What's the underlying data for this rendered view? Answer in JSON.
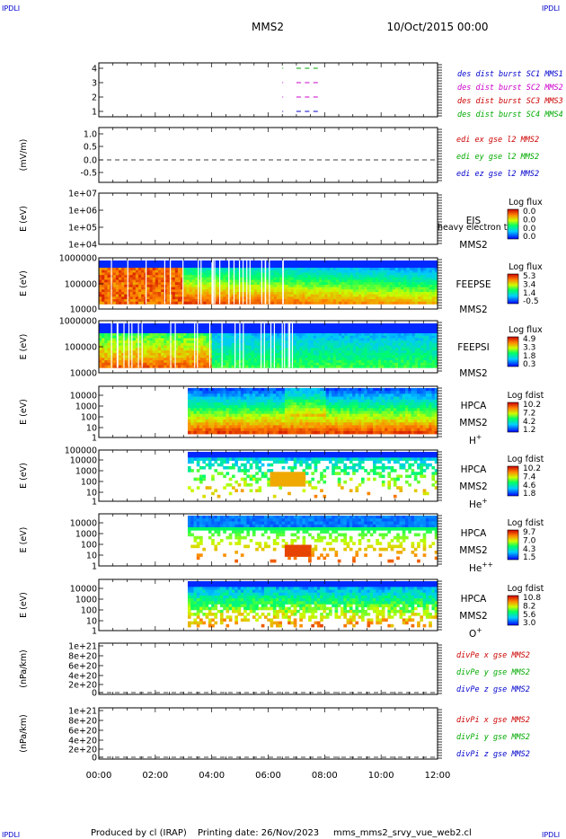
{
  "header": {
    "corner_tl": "IPDLI",
    "corner_tr": "IPDLI",
    "title": "MMS2",
    "date": "10/Oct/2015 00:00"
  },
  "footer": {
    "corner_bl": "IPDLI",
    "corner_br": "IPDLI",
    "produced_by": "Produced by cl (IRAP)",
    "printing_date": "Printing date: 26/Nov/2023",
    "script_name": "mms_mms2_srvy_vue_web2.cl"
  },
  "x_axis": {
    "tick_labels": [
      "00:00",
      "02:00",
      "04:00",
      "06:00",
      "08:00",
      "10:00",
      "12:00"
    ]
  },
  "colors": {
    "mms1": "#0000cc",
    "mms2": "#cc00cc",
    "mms3": "#cc0000",
    "mms4": "#00aa00",
    "red": "#cc0000",
    "green": "#00aa00",
    "blue": "#0000cc"
  },
  "chart_data": [
    {
      "type": "line",
      "panel": "burst",
      "yticks": [
        "1",
        "2",
        "3",
        "4"
      ],
      "legend": [
        "des dist burst SC1 MMS1",
        "des dist burst SC2 MMS2",
        "des dist burst SC3 MMS3",
        "des dist burst SC4 MMS4"
      ],
      "series": [
        {
          "name": "des dist burst SC4 MMS4",
          "level": 4,
          "x": [
            6.5,
            7.0,
            7.3,
            7.6
          ],
          "y": [
            4,
            4,
            4,
            4
          ]
        },
        {
          "name": "des dist burst SC3 MMS3",
          "level": 3,
          "x": [
            6.5,
            7.0,
            7.3,
            7.6
          ],
          "y": [
            3,
            3,
            3,
            3
          ]
        },
        {
          "name": "des dist burst SC2 MMS2",
          "level": 2,
          "x": [
            6.5,
            7.0,
            7.3,
            7.6
          ],
          "y": [
            2,
            2,
            2,
            2
          ]
        },
        {
          "name": "des dist burst SC1 MMS1",
          "level": 1,
          "x": [
            6.5,
            7.0,
            7.3,
            7.6
          ],
          "y": [
            1,
            1,
            1,
            1
          ]
        }
      ],
      "xlim": [
        0,
        12
      ]
    },
    {
      "type": "line",
      "panel": "edi",
      "ylabel": "(mV/m)",
      "yticks": [
        "1.0",
        "0.5",
        "0.0",
        "-0.5"
      ],
      "ylim": [
        -0.75,
        1.2
      ],
      "legend": [
        "edi ex gse l2 MMS2",
        "edi ey gse l2 MMS2",
        "edi ez gse l2 MMS2"
      ],
      "zero_line": true
    },
    {
      "type": "heatmap",
      "panel": "eis",
      "ylabel": "E (eV)",
      "yticks": [
        "1e+07",
        "1e+06",
        "1e+05",
        "1e+04"
      ],
      "label1": "EIS",
      "label2": "MMS2",
      "overlay": "heavy electron to",
      "colorbar": {
        "title": "Log flux",
        "ticks": [
          "0.0",
          "0.0",
          "0.0",
          "0.0"
        ]
      }
    },
    {
      "type": "heatmap",
      "panel": "feepse",
      "ylabel": "E (eV)",
      "yticks": [
        "1000000",
        "100000",
        "10000"
      ],
      "label1": "FEEPSE",
      "label2": "MMS2",
      "colorbar": {
        "title": "Log flux",
        "ticks": [
          "5.3",
          "3.4",
          "1.4",
          "-0.5"
        ]
      }
    },
    {
      "type": "heatmap",
      "panel": "feepsi",
      "ylabel": "E (eV)",
      "yticks": [
        "1000000",
        "100000",
        "10000"
      ],
      "label1": "FEEPSI",
      "label2": "MMS2",
      "colorbar": {
        "title": "Log flux",
        "ticks": [
          "4.9",
          "3.3",
          "1.8",
          "0.3"
        ]
      }
    },
    {
      "type": "heatmap",
      "panel": "hpca-h",
      "ylabel": "E (eV)",
      "yticks": [
        "10000",
        "1000",
        "100",
        "10",
        "1"
      ],
      "label1": "HPCA",
      "label2": "MMS2",
      "species": "H",
      "charge": "+",
      "colorbar": {
        "title": "Log fdist",
        "ticks": [
          "10.2",
          "7.2",
          "4.2",
          "1.2"
        ]
      }
    },
    {
      "type": "heatmap",
      "panel": "hpca-he",
      "ylabel": "E (eV)",
      "yticks": [
        "100000",
        "10000",
        "1000",
        "100",
        "10",
        "1"
      ],
      "label1": "HPCA",
      "label2": "MMS2",
      "species": "He",
      "charge": "+",
      "colorbar": {
        "title": "Log fdist",
        "ticks": [
          "10.2",
          "7.4",
          "4.6",
          "1.8"
        ]
      }
    },
    {
      "type": "heatmap",
      "panel": "hpca-hepp",
      "ylabel": "E (eV)",
      "yticks": [
        "10000",
        "1000",
        "100",
        "10",
        "1"
      ],
      "label1": "HPCA",
      "label2": "MMS2",
      "species": "He",
      "charge": "++",
      "colorbar": {
        "title": "Log fdist",
        "ticks": [
          "9.7",
          "7.0",
          "4.3",
          "1.5"
        ]
      }
    },
    {
      "type": "heatmap",
      "panel": "hpca-o",
      "ylabel": "E (eV)",
      "yticks": [
        "10000",
        "1000",
        "100",
        "10",
        "1"
      ],
      "label1": "HPCA",
      "label2": "MMS2",
      "species": "O",
      "charge": "+",
      "colorbar": {
        "title": "Log fdist",
        "ticks": [
          "10.8",
          "8.2",
          "5.6",
          "3.0"
        ]
      }
    },
    {
      "type": "line",
      "panel": "divpe",
      "ylabel": "(nPa/km)",
      "yticks": [
        "1e+21",
        "8e+20",
        "6e+20",
        "4e+20",
        "2e+20",
        "0"
      ],
      "legend": [
        "divPe x gse MMS2",
        "divPe y gse MMS2",
        "divPe z gse MMS2"
      ],
      "zero_line": true
    },
    {
      "type": "line",
      "panel": "divpi",
      "ylabel": "(nPa/km)",
      "yticks": [
        "1e+21",
        "8e+20",
        "6e+20",
        "4e+20",
        "2e+20",
        "0"
      ],
      "legend": [
        "divPi x gse MMS2",
        "divPi y gse MMS2",
        "divPi z gse MMS2"
      ],
      "zero_line": true
    }
  ]
}
